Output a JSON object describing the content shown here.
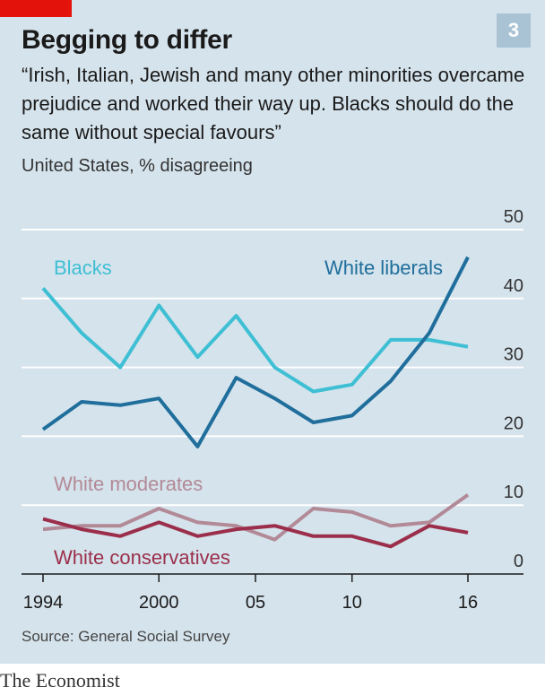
{
  "header": {
    "title": "Begging to differ",
    "subtitle": "“Irish, Italian, Jewish and many other minorities overcame prejudice and worked their way up. Blacks should do the same without special favours”",
    "unit": "United States, % disagreeing",
    "chart_number": "3"
  },
  "footer": {
    "source": "Source: General Social Survey",
    "brand": "The Economist"
  },
  "chart_data": {
    "type": "line",
    "x_ticks": [
      {
        "value": 1994,
        "label": "1994"
      },
      {
        "value": 2000,
        "label": "2000"
      },
      {
        "value": 2005,
        "label": "05"
      },
      {
        "value": 2010,
        "label": "10"
      },
      {
        "value": 2016,
        "label": "16"
      }
    ],
    "y_ticks": [
      {
        "value": 0,
        "label": "0"
      },
      {
        "value": 10,
        "label": "10"
      },
      {
        "value": 20,
        "label": "20"
      },
      {
        "value": 30,
        "label": "30"
      },
      {
        "value": 40,
        "label": "40"
      },
      {
        "value": 50,
        "label": "50"
      }
    ],
    "xlim": [
      1993,
      2020
    ],
    "ylim": [
      0,
      50
    ],
    "y_axis_side": "right",
    "grid": "horizontal",
    "series": [
      {
        "name": "Blacks",
        "color": "#3ebfd4",
        "x": [
          1994,
          1996,
          1998,
          2000,
          2002,
          2004,
          2006,
          2008,
          2010,
          2012,
          2014,
          2016
        ],
        "values": [
          41.5,
          35,
          30,
          39,
          31.5,
          37.5,
          30,
          26.5,
          27.5,
          34,
          34,
          33
        ]
      },
      {
        "name": "White liberals",
        "color": "#1f6e9c",
        "x": [
          1994,
          1996,
          1998,
          2000,
          2002,
          2004,
          2006,
          2008,
          2010,
          2012,
          2014,
          2016
        ],
        "values": [
          21,
          25,
          24.5,
          25.5,
          18.5,
          28.5,
          25.5,
          22,
          23,
          28,
          35,
          46
        ]
      },
      {
        "name": "White moderates",
        "color": "#b28a97",
        "x": [
          1994,
          1996,
          1998,
          2000,
          2002,
          2004,
          2006,
          2008,
          2010,
          2012,
          2014,
          2016
        ],
        "values": [
          6.5,
          7,
          7,
          9.5,
          7.5,
          7,
          5,
          9.5,
          9,
          7,
          7.5,
          11.5
        ]
      },
      {
        "name": "White conservatives",
        "color": "#9b2f4b",
        "x": [
          1994,
          1996,
          1998,
          2000,
          2002,
          2004,
          2006,
          2008,
          2010,
          2012,
          2014,
          2016
        ],
        "values": [
          8,
          6.5,
          5.5,
          7.5,
          5.5,
          6.5,
          7,
          5.5,
          5.5,
          4,
          7,
          6
        ]
      }
    ]
  }
}
